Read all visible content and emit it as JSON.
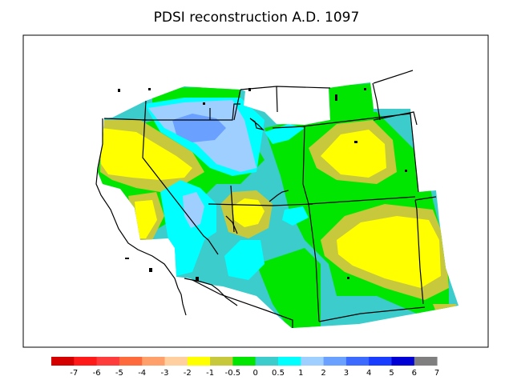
{
  "title": "PDSI reconstruction A.D. 1097",
  "legend": {
    "colors": [
      "#d40000",
      "#ff1a1a",
      "#ff3c3c",
      "#ff6a3c",
      "#ff9f6a",
      "#ffcf9f",
      "#ffff00",
      "#c8c83c",
      "#00e600",
      "#3ccccc",
      "#00ffff",
      "#9fcfff",
      "#6aa0ff",
      "#3c6aff",
      "#1a3cff",
      "#0000d4",
      "#7f7f7f"
    ],
    "labels": [
      "-7",
      "-6",
      "-5",
      "-4",
      "-3",
      "-2",
      "-1",
      "-0.5",
      "0",
      "0.5",
      "1",
      "2",
      "3",
      "4",
      "5",
      "6",
      "7"
    ]
  },
  "fill_colors": {
    "yellow": "#ffff00",
    "olive": "#c8c83c",
    "green": "#00e600",
    "teal": "#3ccccc",
    "cyan": "#00ffff",
    "lightblue": "#9fcfff",
    "blue": "#6aa0ff",
    "salmon": "#ffcf9f"
  }
}
